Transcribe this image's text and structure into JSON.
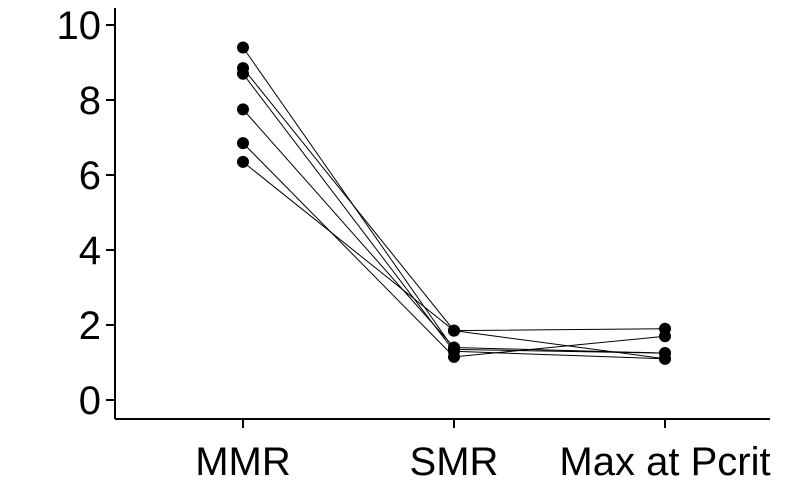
{
  "chart_data": {
    "type": "line",
    "categories": [
      "MMR",
      "SMR",
      "Max at Pcrit"
    ],
    "series": [
      {
        "values": [
          9.4,
          1.35,
          1.25
        ]
      },
      {
        "values": [
          8.85,
          1.85,
          1.9
        ]
      },
      {
        "values": [
          8.7,
          1.3,
          1.1
        ]
      },
      {
        "values": [
          7.75,
          1.4,
          1.25
        ]
      },
      {
        "values": [
          6.85,
          1.15,
          1.7
        ]
      },
      {
        "values": [
          6.35,
          1.85,
          1.1
        ]
      }
    ],
    "yticks": [
      "0",
      "2",
      "4",
      "6",
      "8",
      "10"
    ],
    "ylim": [
      0,
      10
    ],
    "title": "",
    "xlabel": "",
    "ylabel": "",
    "grid": false,
    "legend": "none",
    "colors": {
      "line": "#000000",
      "marker": "#000000",
      "axis": "#000000"
    }
  }
}
